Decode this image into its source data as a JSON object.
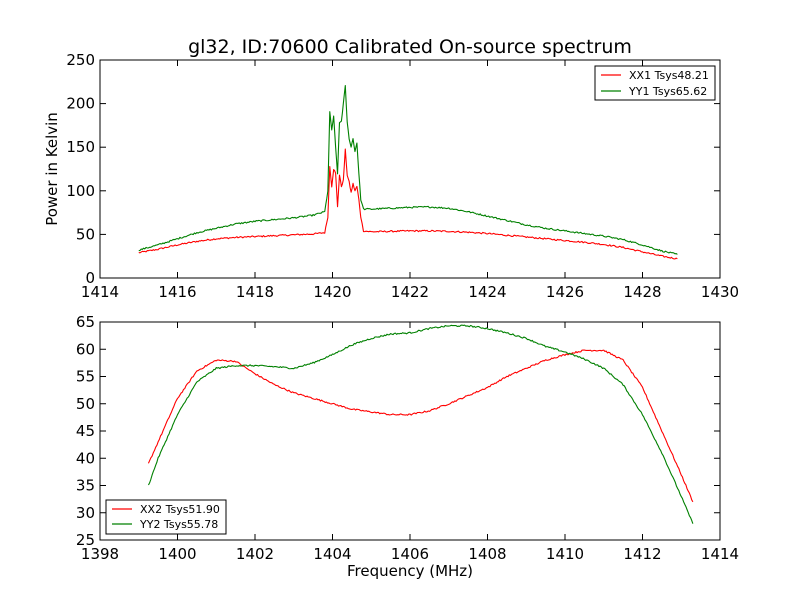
{
  "figure_title": "gl32, ID:70600 Calibrated On-source spectrum",
  "chart_data": [
    {
      "type": "line",
      "title": "gl32, ID:70600 Calibrated On-source spectrum",
      "xlabel": "",
      "ylabel": "Power in Kelvin",
      "xlim": [
        1414,
        1430
      ],
      "ylim": [
        0,
        250
      ],
      "xticks": [
        "1414",
        "1416",
        "1418",
        "1420",
        "1422",
        "1424",
        "1426",
        "1428",
        "1430"
      ],
      "yticks": [
        "0",
        "50",
        "100",
        "150",
        "200",
        "250"
      ],
      "legend_position": "top-right",
      "grid": false,
      "series": [
        {
          "name": "XX1 Tsys48.21",
          "color": "#ff0000",
          "points": [
            [
              1415.0,
              29
            ],
            [
              1415.5,
              33
            ],
            [
              1416.0,
              38
            ],
            [
              1416.5,
              42
            ],
            [
              1417.0,
              45
            ],
            [
              1417.5,
              46.5
            ],
            [
              1418.0,
              47.5
            ],
            [
              1418.5,
              48.5
            ],
            [
              1419.0,
              49.5
            ],
            [
              1419.5,
              50.5
            ],
            [
              1419.8,
              52
            ],
            [
              1419.88,
              70
            ],
            [
              1419.93,
              128
            ],
            [
              1419.98,
              105
            ],
            [
              1420.03,
              125
            ],
            [
              1420.08,
              120
            ],
            [
              1420.13,
              82
            ],
            [
              1420.18,
              118
            ],
            [
              1420.23,
              105
            ],
            [
              1420.28,
              112
            ],
            [
              1420.33,
              147
            ],
            [
              1420.38,
              118
            ],
            [
              1420.43,
              110
            ],
            [
              1420.48,
              98
            ],
            [
              1420.53,
              108
            ],
            [
              1420.58,
              100
            ],
            [
              1420.63,
              105
            ],
            [
              1420.68,
              90
            ],
            [
              1420.73,
              70
            ],
            [
              1420.8,
              54
            ],
            [
              1421.0,
              53
            ],
            [
              1421.5,
              53.5
            ],
            [
              1422.0,
              54
            ],
            [
              1422.5,
              54
            ],
            [
              1423.0,
              53.5
            ],
            [
              1423.5,
              52.5
            ],
            [
              1424.0,
              51
            ],
            [
              1424.5,
              49
            ],
            [
              1425.0,
              47
            ],
            [
              1425.5,
              45
            ],
            [
              1426.0,
              43
            ],
            [
              1426.5,
              41
            ],
            [
              1427.0,
              38.5
            ],
            [
              1427.5,
              35
            ],
            [
              1428.0,
              30
            ],
            [
              1428.5,
              25
            ],
            [
              1428.9,
              22
            ]
          ]
        },
        {
          "name": "YY1 Tsys65.62",
          "color": "#008000",
          "points": [
            [
              1415.0,
              32
            ],
            [
              1415.5,
              38
            ],
            [
              1416.0,
              45
            ],
            [
              1416.5,
              52
            ],
            [
              1417.0,
              57
            ],
            [
              1417.5,
              62
            ],
            [
              1418.0,
              65
            ],
            [
              1418.5,
              67
            ],
            [
              1419.0,
              69
            ],
            [
              1419.5,
              72
            ],
            [
              1419.8,
              76
            ],
            [
              1419.88,
              100
            ],
            [
              1419.93,
              190
            ],
            [
              1419.98,
              170
            ],
            [
              1420.03,
              185
            ],
            [
              1420.08,
              150
            ],
            [
              1420.13,
              120
            ],
            [
              1420.18,
              178
            ],
            [
              1420.23,
              180
            ],
            [
              1420.28,
              200
            ],
            [
              1420.33,
              220
            ],
            [
              1420.38,
              178
            ],
            [
              1420.43,
              160
            ],
            [
              1420.48,
              150
            ],
            [
              1420.53,
              160
            ],
            [
              1420.58,
              145
            ],
            [
              1420.63,
              155
            ],
            [
              1420.68,
              120
            ],
            [
              1420.73,
              90
            ],
            [
              1420.8,
              79
            ],
            [
              1421.0,
              79
            ],
            [
              1421.5,
              80
            ],
            [
              1422.0,
              81
            ],
            [
              1422.5,
              81.5
            ],
            [
              1423.0,
              80
            ],
            [
              1423.5,
              76
            ],
            [
              1424.0,
              71
            ],
            [
              1424.5,
              66
            ],
            [
              1425.0,
              61
            ],
            [
              1425.5,
              57
            ],
            [
              1426.0,
              54
            ],
            [
              1426.5,
              51
            ],
            [
              1427.0,
              48
            ],
            [
              1427.5,
              44
            ],
            [
              1428.0,
              38
            ],
            [
              1428.5,
              31
            ],
            [
              1428.9,
              27
            ]
          ]
        }
      ]
    },
    {
      "type": "line",
      "title": "",
      "xlabel": "Frequency (MHz)",
      "ylabel": "",
      "xlim": [
        1398,
        1414
      ],
      "ylim": [
        25,
        65
      ],
      "xticks": [
        "1398",
        "1400",
        "1402",
        "1404",
        "1406",
        "1408",
        "1410",
        "1412",
        "1414"
      ],
      "yticks": [
        "25",
        "30",
        "35",
        "40",
        "45",
        "50",
        "55",
        "60",
        "65"
      ],
      "legend_position": "bottom-left",
      "grid": false,
      "series": [
        {
          "name": "XX2 Tsys51.90",
          "color": "#ff0000",
          "points": [
            [
              1399.25,
              39
            ],
            [
              1399.5,
              43
            ],
            [
              1400.0,
              51
            ],
            [
              1400.5,
              56
            ],
            [
              1401.0,
              58
            ],
            [
              1401.5,
              57.8
            ],
            [
              1402.0,
              55.5
            ],
            [
              1402.5,
              53.5
            ],
            [
              1403.0,
              52
            ],
            [
              1403.5,
              51
            ],
            [
              1404.0,
              50
            ],
            [
              1404.5,
              49
            ],
            [
              1405.0,
              48.5
            ],
            [
              1405.5,
              48
            ],
            [
              1406.0,
              48
            ],
            [
              1406.5,
              48.7
            ],
            [
              1407.0,
              50
            ],
            [
              1407.5,
              51.5
            ],
            [
              1408.0,
              53
            ],
            [
              1408.5,
              55
            ],
            [
              1409.0,
              56.5
            ],
            [
              1409.5,
              58
            ],
            [
              1410.0,
              59
            ],
            [
              1410.5,
              59.8
            ],
            [
              1411.0,
              59.8
            ],
            [
              1411.5,
              58
            ],
            [
              1412.0,
              53
            ],
            [
              1412.5,
              45
            ],
            [
              1413.0,
              37
            ],
            [
              1413.3,
              32
            ]
          ]
        },
        {
          "name": "YY2 Tsys55.78",
          "color": "#008000",
          "points": [
            [
              1399.25,
              35
            ],
            [
              1399.5,
              40
            ],
            [
              1400.0,
              48
            ],
            [
              1400.5,
              54
            ],
            [
              1401.0,
              56.5
            ],
            [
              1401.5,
              57
            ],
            [
              1402.0,
              57
            ],
            [
              1402.5,
              56.8
            ],
            [
              1403.0,
              56.5
            ],
            [
              1403.5,
              57.5
            ],
            [
              1404.0,
              59
            ],
            [
              1404.5,
              60.8
            ],
            [
              1405.0,
              62
            ],
            [
              1405.5,
              62.8
            ],
            [
              1406.0,
              63
            ],
            [
              1406.5,
              63.8
            ],
            [
              1407.0,
              64.3
            ],
            [
              1407.5,
              64.3
            ],
            [
              1408.0,
              63.8
            ],
            [
              1408.5,
              63
            ],
            [
              1409.0,
              62
            ],
            [
              1409.5,
              60.5
            ],
            [
              1410.0,
              59.5
            ],
            [
              1410.5,
              58.2
            ],
            [
              1411.0,
              56.5
            ],
            [
              1411.5,
              53.5
            ],
            [
              1412.0,
              48
            ],
            [
              1412.5,
              41
            ],
            [
              1413.0,
              33
            ],
            [
              1413.3,
              28
            ]
          ]
        }
      ]
    }
  ]
}
